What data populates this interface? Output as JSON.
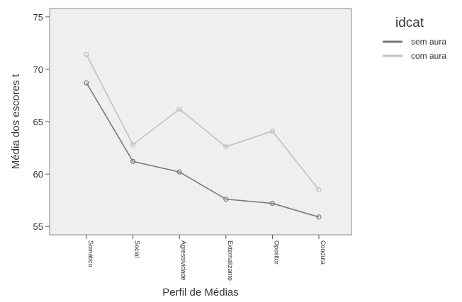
{
  "chart_data": {
    "type": "line",
    "categories": [
      "Somático",
      "Social",
      "Agressividade",
      "Externalizante",
      "Opositor",
      "Conduta"
    ],
    "series": [
      {
        "name": "sem aura",
        "values": [
          68.7,
          61.2,
          60.2,
          57.6,
          57.2,
          55.9
        ],
        "color": "#7a7a7a"
      },
      {
        "name": "com aura",
        "values": [
          71.4,
          62.8,
          66.2,
          62.6,
          64.1,
          58.5
        ],
        "color": "#c0c0c0"
      }
    ],
    "xlabel": "Perfil de Médias",
    "ylabel": "Média dos escores t",
    "ylim": [
      54.2,
      75.8
    ],
    "yticks": [
      55,
      60,
      65,
      70,
      75
    ],
    "grid": false,
    "legend": {
      "title": "idcat",
      "position": "top-right"
    },
    "plot_background": "#efefed"
  }
}
